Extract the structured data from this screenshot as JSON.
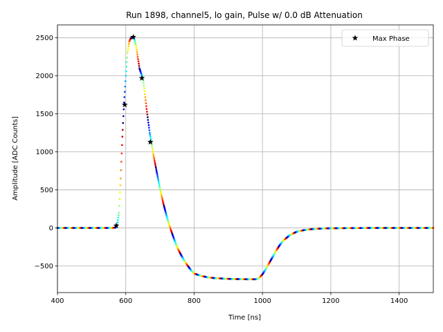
{
  "chart_data": {
    "type": "scatter",
    "title": "Run 1898, channel5, lo gain, Pulse w/ 0.0 dB Attenuation",
    "xlabel": "Time [ns]",
    "ylabel": "Amplitude [ADC Counts]",
    "xlim": [
      400,
      1500
    ],
    "ylim": [
      -850,
      2670
    ],
    "xticks": [
      400,
      600,
      800,
      1000,
      1200,
      1400
    ],
    "yticks": [
      -500,
      0,
      500,
      1000,
      1500,
      2000,
      2500
    ],
    "grid": true,
    "legend_position": "top-right",
    "colormap": "jet",
    "series": [
      {
        "name": "",
        "style": "colored dots",
        "x": [
          400,
          450,
          500,
          540,
          560,
          570,
          575,
          580,
          585,
          590,
          595,
          600,
          605,
          610,
          615,
          620,
          625,
          630,
          635,
          640,
          645,
          650,
          655,
          660,
          665,
          670,
          675,
          680,
          690,
          700,
          710,
          720,
          730,
          740,
          750,
          760,
          770,
          780,
          790,
          800,
          820,
          840,
          860,
          880,
          900,
          920,
          940,
          960,
          980,
          990,
          1000,
          1010,
          1020,
          1030,
          1040,
          1050,
          1060,
          1080,
          1100,
          1120,
          1140,
          1160,
          1180,
          1200,
          1250,
          1300,
          1350,
          1400,
          1450,
          1500
        ],
        "y": [
          0,
          0,
          0,
          0,
          0,
          5,
          40,
          200,
          650,
          1200,
          1650,
          2000,
          2300,
          2450,
          2500,
          2510,
          2480,
          2400,
          2250,
          2100,
          2030,
          1980,
          1800,
          1600,
          1420,
          1250,
          1130,
          980,
          750,
          520,
          320,
          150,
          0,
          -130,
          -250,
          -340,
          -420,
          -490,
          -550,
          -600,
          -630,
          -650,
          -660,
          -665,
          -670,
          -672,
          -674,
          -675,
          -675,
          -660,
          -610,
          -540,
          -460,
          -380,
          -300,
          -230,
          -170,
          -95,
          -50,
          -30,
          -18,
          -10,
          -6,
          -4,
          -2,
          -1,
          -1,
          0,
          0,
          0
        ]
      },
      {
        "name": "Max Phase",
        "style": "black star markers",
        "x": [
          572,
          597,
          622,
          647,
          672
        ],
        "y": [
          30,
          1620,
          2510,
          1970,
          1130
        ]
      }
    ]
  },
  "colors": {
    "grid": "#b0b0b0",
    "axes": "#000000",
    "marker_max_phase": "#000000"
  }
}
